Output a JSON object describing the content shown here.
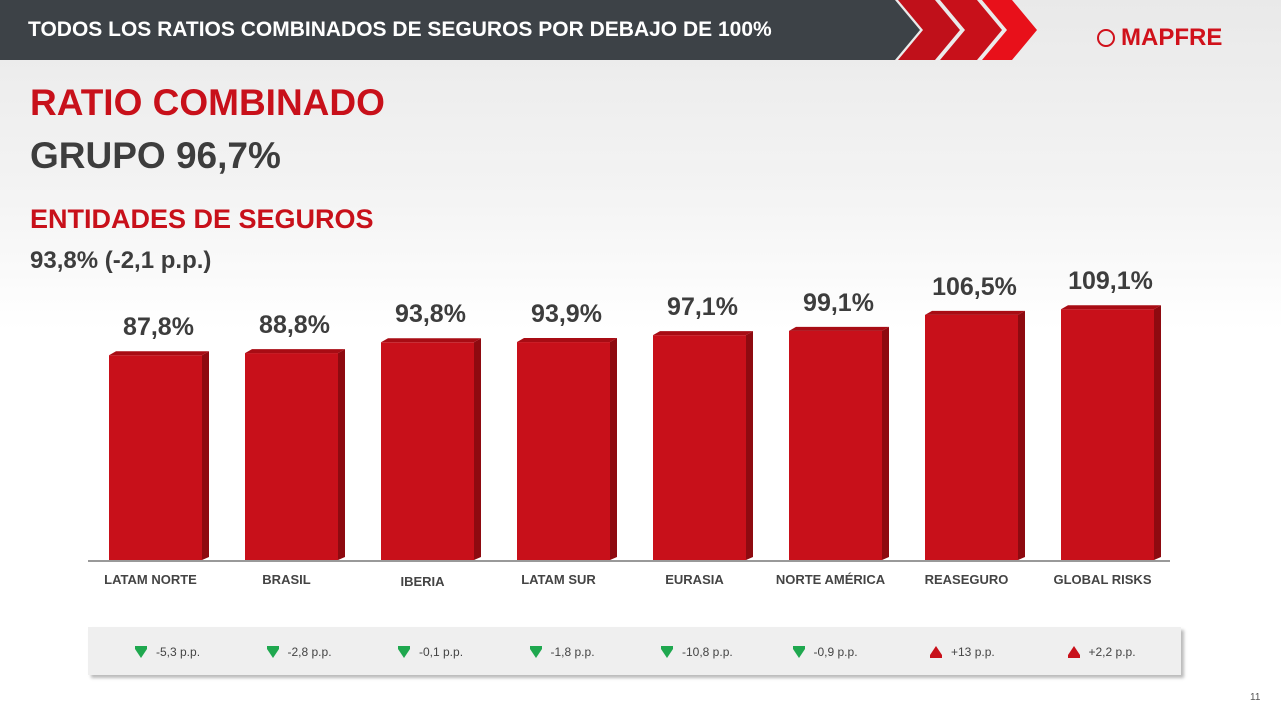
{
  "header": {
    "title": "TODOS LOS RATIOS COMBINADOS DE SEGUROS POR DEBAJO DE 100%",
    "logo_text": "MAPFRE",
    "brand_color": "#d0111b"
  },
  "headline": {
    "title": "RATIO COMBINADO",
    "group": "GRUPO 96,7%",
    "subtitle": "ENTIDADES DE SEGUROS",
    "subvalue": "93,8% (-2,1 p.p.)"
  },
  "chart_data": {
    "type": "bar",
    "categories": [
      "LATAM NORTE",
      "BRASIL",
      "IBERIA",
      "LATAM SUR",
      "EURASIA",
      "NORTE AMÉRICA",
      "REASEGURO",
      "GLOBAL RISKS"
    ],
    "values": [
      87.8,
      88.8,
      93.8,
      93.9,
      97.1,
      99.1,
      106.5,
      109.1
    ],
    "data_labels": [
      "87,8%",
      "88,8%",
      "93,8%",
      "93,9%",
      "97,1%",
      "99,1%",
      "106,5%",
      "109,1%"
    ],
    "changes": [
      "-5,3 p.p.",
      "-2,8 p.p.",
      "-0,1 p.p.",
      "-1,8 p.p.",
      "-10,8 p.p.",
      "-0,9 p.p.",
      "+13 p.p.",
      "+2,2 p.p."
    ],
    "change_direction": [
      "down",
      "down",
      "down",
      "down",
      "down",
      "down",
      "up",
      "up"
    ],
    "colors": {
      "bar": "#c8101a",
      "down": "#1fa84f",
      "up": "#c8101a"
    },
    "ylim": [
      -7,
      112
    ],
    "grid": false
  },
  "page_number": "11"
}
